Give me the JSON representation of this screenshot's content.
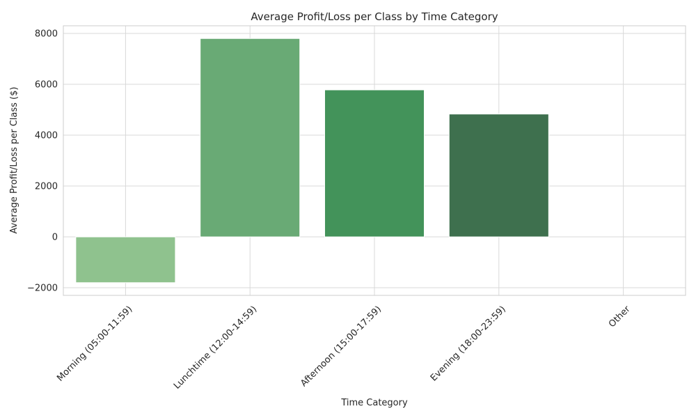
{
  "chart_data": {
    "type": "bar",
    "title": "Average Profit/Loss per Class by Time Category",
    "xlabel": "Time Category",
    "ylabel": "Average Profit/Loss per Class ($)",
    "categories": [
      "Morning (05:00-11:59)",
      "Lunchtime (12:00-14:59)",
      "Afternoon (15:00-17:59)",
      "Evening (18:00-23:59)",
      "Other"
    ],
    "values": [
      -1800,
      7800,
      5780,
      4830,
      0
    ],
    "colors": [
      "#8fc28e",
      "#69aa75",
      "#43935a",
      "#3e704e",
      "#2f5a3e"
    ],
    "ylim": [
      -2300,
      8300
    ],
    "yticks": [
      -2000,
      0,
      2000,
      4000,
      6000,
      8000
    ],
    "ytick_labels": [
      "−2000",
      "0",
      "2000",
      "4000",
      "6000",
      "8000"
    ],
    "grid": true,
    "legend": "none"
  }
}
